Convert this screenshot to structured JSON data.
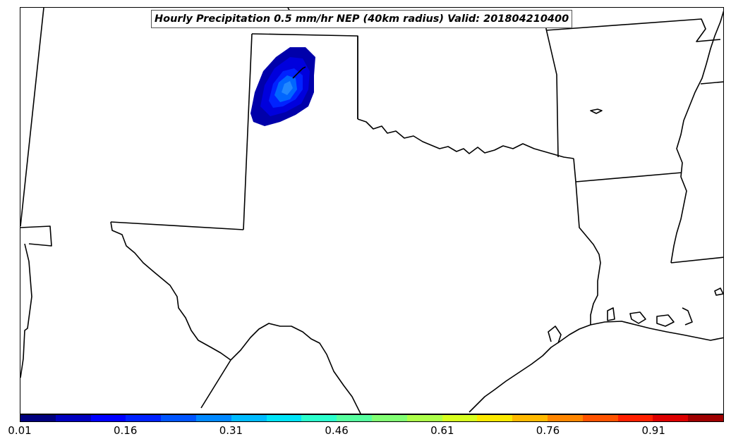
{
  "title": "Hourly Precipitation 0.5 mm/hr NEP (40km radius) Valid: 201804210400",
  "colorbar": {
    "colors": [
      "#00007f",
      "#0000bf",
      "#0000ff",
      "#0022ff",
      "#0055ff",
      "#0088ff",
      "#00bbff",
      "#00e4f8",
      "#2bffcd",
      "#56ff9f",
      "#82ff74",
      "#adff4a",
      "#d8ff1f",
      "#fbe900",
      "#ffb900",
      "#ff8600",
      "#ff5300",
      "#ff2000",
      "#dd0000",
      "#9f0000"
    ],
    "ticks": [
      "0.01",
      "0.16",
      "0.31",
      "0.46",
      "0.61",
      "0.76",
      "0.91"
    ],
    "range": [
      0.01,
      1.01
    ]
  },
  "precip_blob": {
    "color_levels": [
      "#0000aa",
      "#0000dd",
      "#0022ff",
      "#0066ff"
    ]
  }
}
